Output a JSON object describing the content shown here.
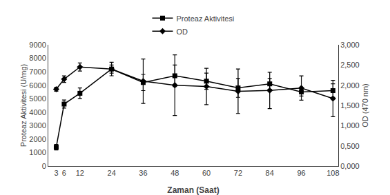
{
  "chart_data": {
    "type": "line",
    "x": [
      3,
      6,
      12,
      24,
      36,
      48,
      60,
      72,
      84,
      96,
      108
    ],
    "xlabel": "Zaman (Saat)",
    "ylabel": "Proteaz Aktivitesi (U/mg)",
    "y2label": "OD (470 nm)",
    "xlim": [
      0,
      110
    ],
    "xticks": [
      3,
      6,
      12,
      24,
      36,
      48,
      60,
      72,
      84,
      96,
      108
    ],
    "ylim": [
      0,
      9000
    ],
    "yticks": [
      0,
      1000,
      2000,
      3000,
      4000,
      5000,
      6000,
      7000,
      8000,
      9000
    ],
    "y2lim": [
      0.0,
      3.0
    ],
    "y2ticks": [
      {
        "value": 0.0,
        "label": "0,000"
      },
      {
        "value": 0.5,
        "label": "0,500"
      },
      {
        "value": 1.0,
        "label": "1,000"
      },
      {
        "value": 1.5,
        "label": "1,500"
      },
      {
        "value": 2.0,
        "label": "2,000"
      },
      {
        "value": 2.5,
        "label": "2,500"
      },
      {
        "value": 3.0,
        "label": "3,000"
      }
    ],
    "grid": false,
    "legend": "top",
    "series": [
      {
        "name": "Proteaz Aktivitesi",
        "color": "#000000",
        "marker": "square",
        "values": [
          1400,
          4600,
          5400,
          7200,
          6200,
          6700,
          6300,
          5800,
          6100,
          5500,
          5600
        ],
        "error": [
          200,
          300,
          400,
          500,
          600,
          800,
          600,
          700,
          400,
          300,
          500
        ]
      },
      {
        "name": "OD",
        "color": "#000000",
        "marker": "diamond",
        "axis": "y2",
        "values": [
          1.9,
          2.15,
          2.45,
          2.4,
          2.1,
          2.0,
          1.97,
          1.85,
          1.87,
          1.93,
          1.67
        ],
        "error": [
          0.05,
          0.08,
          0.1,
          0.1,
          0.55,
          0.75,
          0.45,
          0.55,
          0.45,
          0.3,
          0.45
        ]
      }
    ]
  }
}
